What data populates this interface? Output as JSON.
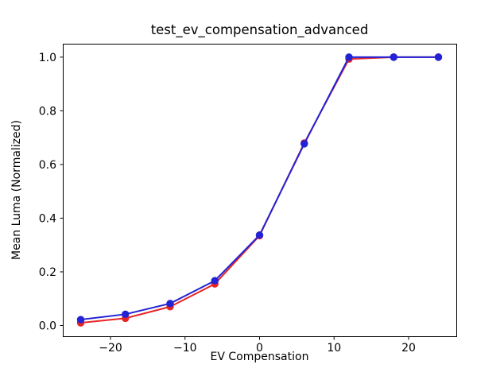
{
  "figure": {
    "title": "test_ev_compensation_advanced",
    "xlabel": "EV Compensation",
    "ylabel": "Mean Luma (Normalized)"
  },
  "chart_data": {
    "type": "line",
    "title": "test_ev_compensation_advanced",
    "xlabel": "EV Compensation",
    "ylabel": "Mean Luma (Normalized)",
    "x": [
      -24,
      -18,
      -12,
      -6,
      0,
      6,
      12,
      18,
      24
    ],
    "series": [
      {
        "name": "red-series",
        "color": "#e62525",
        "marker": "circle",
        "values": [
          0.01,
          0.027,
          0.07,
          0.155,
          0.335,
          0.68,
          0.993,
          1.0,
          1.0
        ]
      },
      {
        "name": "blue-series",
        "color": "#2323d6",
        "marker": "circle",
        "values": [
          0.022,
          0.042,
          0.082,
          0.167,
          0.337,
          0.677,
          1.0,
          1.0,
          1.0
        ]
      }
    ],
    "xticks": [
      -20,
      -10,
      0,
      10,
      20
    ],
    "xtick_labels": [
      "−20",
      "−10",
      "0",
      "10",
      "20"
    ],
    "yticks": [
      0.0,
      0.2,
      0.4,
      0.6,
      0.8,
      1.0
    ],
    "ytick_labels": [
      "0.0",
      "0.2",
      "0.4",
      "0.6",
      "0.8",
      "1.0"
    ],
    "xlim": [
      -26.4,
      26.4
    ],
    "ylim": [
      -0.04,
      1.05
    ],
    "grid": false,
    "legend": null,
    "axis_color": "#000000",
    "background_color": "#ffffff"
  }
}
